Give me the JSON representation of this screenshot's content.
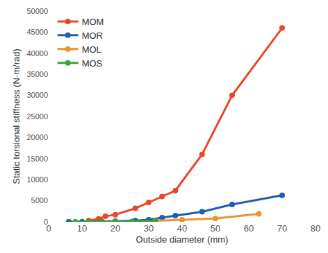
{
  "chart_data": {
    "type": "line",
    "x_label": "Outside diameter (mm)",
    "y_label": "Static torsional stiffness (N·m/rad)",
    "xlim": [
      0,
      80
    ],
    "xticks": [
      0,
      10,
      20,
      30,
      40,
      50,
      60,
      70,
      80
    ],
    "ylim": [
      0,
      50000
    ],
    "yticks": [
      0,
      5000,
      10000,
      15000,
      20000,
      25000,
      30000,
      35000,
      40000,
      45000,
      50000
    ],
    "grid": false,
    "legend": "top-left",
    "marker": "circle",
    "line_style": "solid",
    "series": [
      {
        "name": "MOM",
        "color": "#e8472b",
        "x": [
          12,
          15,
          17,
          20,
          26,
          30,
          34,
          38,
          46,
          55,
          70
        ],
        "values": [
          300,
          700,
          1300,
          1700,
          3200,
          4600,
          6000,
          7400,
          16000,
          30000,
          46000
        ]
      },
      {
        "name": "MOR",
        "color": "#1f5fae",
        "x": [
          6,
          10,
          16,
          20,
          26,
          30,
          34,
          38,
          46,
          55,
          70
        ],
        "values": [
          10,
          30,
          80,
          150,
          300,
          500,
          1000,
          1500,
          2400,
          4100,
          6300
        ]
      },
      {
        "name": "MOL",
        "color": "#f0922b",
        "x": [
          32,
          40,
          50,
          63
        ],
        "values": [
          250,
          500,
          800,
          1900
        ]
      },
      {
        "name": "MOS",
        "color": "#3aa335",
        "x": [
          8,
          12,
          16,
          20,
          25,
          32
        ],
        "values": [
          5,
          15,
          25,
          40,
          70,
          150
        ]
      }
    ]
  }
}
